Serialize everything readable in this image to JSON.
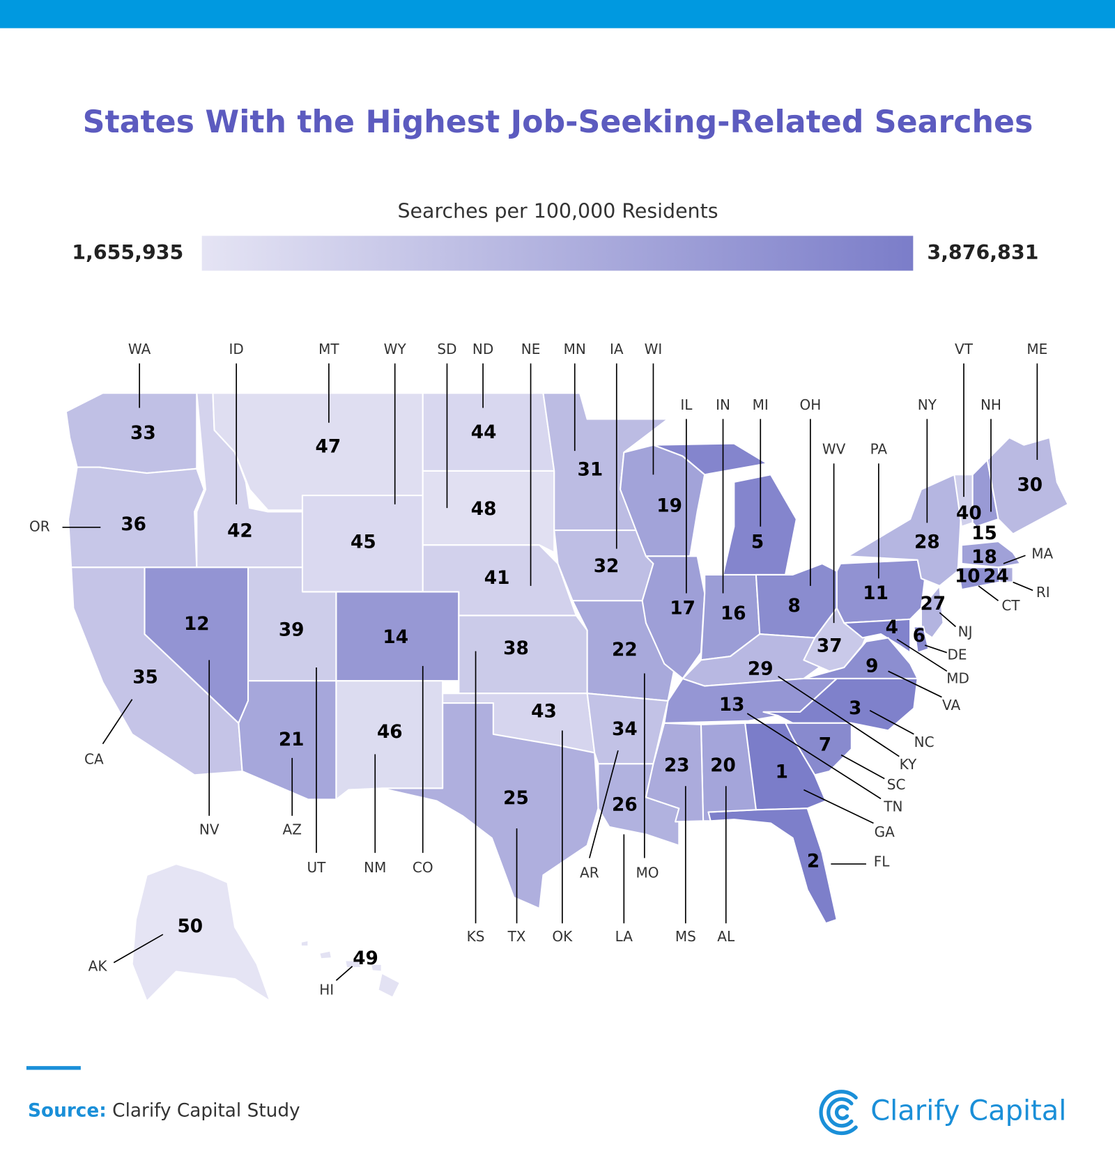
{
  "title": "States With the Highest Job-Seeking-Related Searches",
  "legend": {
    "label": "Searches per 100,000 Residents",
    "min": {
      "value": 1655935,
      "label": "1,655,935"
    },
    "max": {
      "value": 3876831,
      "label": "3,876,831"
    }
  },
  "states": [
    {
      "abbr": "WA",
      "rank": 33
    },
    {
      "abbr": "OR",
      "rank": 36
    },
    {
      "abbr": "CA",
      "rank": 35
    },
    {
      "abbr": "ID",
      "rank": 42
    },
    {
      "abbr": "NV",
      "rank": 12
    },
    {
      "abbr": "MT",
      "rank": 47
    },
    {
      "abbr": "WY",
      "rank": 45
    },
    {
      "abbr": "UT",
      "rank": 39
    },
    {
      "abbr": "AZ",
      "rank": 21
    },
    {
      "abbr": "CO",
      "rank": 14
    },
    {
      "abbr": "NM",
      "rank": 46
    },
    {
      "abbr": "ND",
      "rank": 44
    },
    {
      "abbr": "SD",
      "rank": 48
    },
    {
      "abbr": "NE",
      "rank": 41
    },
    {
      "abbr": "KS",
      "rank": 38
    },
    {
      "abbr": "OK",
      "rank": 43
    },
    {
      "abbr": "TX",
      "rank": 25
    },
    {
      "abbr": "MN",
      "rank": 31
    },
    {
      "abbr": "IA",
      "rank": 32
    },
    {
      "abbr": "MO",
      "rank": 22
    },
    {
      "abbr": "AR",
      "rank": 34
    },
    {
      "abbr": "LA",
      "rank": 26
    },
    {
      "abbr": "WI",
      "rank": 19
    },
    {
      "abbr": "IL",
      "rank": 17
    },
    {
      "abbr": "IN",
      "rank": 16
    },
    {
      "abbr": "MI",
      "rank": 5
    },
    {
      "abbr": "OH",
      "rank": 8
    },
    {
      "abbr": "KY",
      "rank": 29
    },
    {
      "abbr": "TN",
      "rank": 13
    },
    {
      "abbr": "WV",
      "rank": 37
    },
    {
      "abbr": "PA",
      "rank": 11
    },
    {
      "abbr": "NY",
      "rank": 28
    },
    {
      "abbr": "VT",
      "rank": 40
    },
    {
      "abbr": "NH",
      "rank": 15
    },
    {
      "abbr": "ME",
      "rank": 30
    },
    {
      "abbr": "MA",
      "rank": 18
    },
    {
      "abbr": "RI",
      "rank": 24
    },
    {
      "abbr": "CT",
      "rank": 10
    },
    {
      "abbr": "NJ",
      "rank": 27
    },
    {
      "abbr": "DE",
      "rank": 6
    },
    {
      "abbr": "MD",
      "rank": 4
    },
    {
      "abbr": "VA",
      "rank": 9
    },
    {
      "abbr": "NC",
      "rank": 3
    },
    {
      "abbr": "SC",
      "rank": 7
    },
    {
      "abbr": "GA",
      "rank": 1
    },
    {
      "abbr": "FL",
      "rank": 2
    },
    {
      "abbr": "AL",
      "rank": 20
    },
    {
      "abbr": "MS",
      "rank": 23
    },
    {
      "abbr": "AK",
      "rank": 50
    },
    {
      "abbr": "HI",
      "rank": 49
    }
  ],
  "source": {
    "label": "Source:",
    "text": "Clarify Capital Study"
  },
  "logo": "Clarify Capital"
}
